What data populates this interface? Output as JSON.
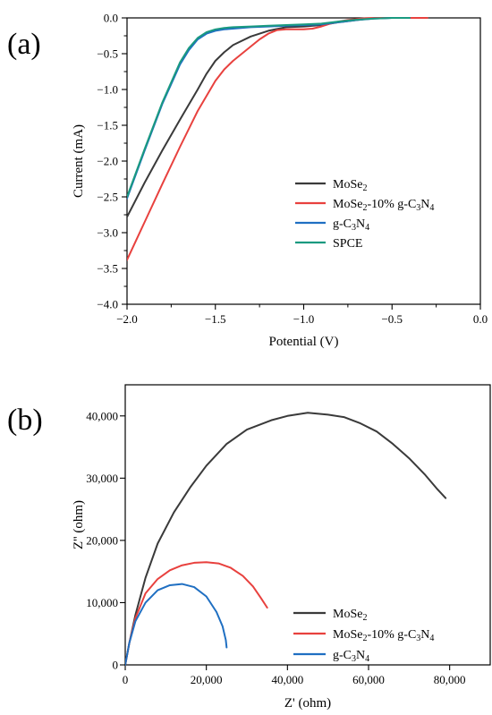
{
  "chart_data": [
    {
      "type": "line",
      "panel_label": "(a)",
      "xlabel": "Potential (V)",
      "ylabel": "Current (mA)",
      "xlim": [
        -2.0,
        0.0
      ],
      "ylim": [
        -4.0,
        0.0
      ],
      "x_ticks": [
        -2.0,
        -1.5,
        -1.0,
        -0.5,
        0.0
      ],
      "x_tick_labels": [
        "−2.0",
        "−1.5",
        "−1.0",
        "−0.5",
        "0.0"
      ],
      "y_ticks": [
        0.0,
        -0.5,
        -1.0,
        -1.5,
        -2.0,
        -2.5,
        -3.0,
        -3.5,
        -4.0
      ],
      "y_tick_labels": [
        "0.0",
        "−0.5",
        "−1.0",
        "−1.5",
        "−2.0",
        "−2.5",
        "−3.0",
        "−3.5",
        "−4.0"
      ],
      "grid": false,
      "legend_position": "bottom-right",
      "series": [
        {
          "name": "MoSe2",
          "color": "#3a3a3a",
          "x": [
            -2.0,
            -1.9,
            -1.8,
            -1.7,
            -1.6,
            -1.55,
            -1.5,
            -1.45,
            -1.4,
            -1.3,
            -1.2,
            -1.1,
            -1.0,
            -0.9,
            -0.8,
            -0.7,
            -0.65,
            -0.6,
            -0.5,
            -0.4,
            -0.3
          ],
          "y": [
            -2.78,
            -2.3,
            -1.85,
            -1.42,
            -1.0,
            -0.78,
            -0.6,
            -0.48,
            -0.38,
            -0.26,
            -0.18,
            -0.13,
            -0.12,
            -0.1,
            -0.06,
            -0.03,
            -0.015,
            -0.005,
            0.0,
            0.0,
            0.0
          ]
        },
        {
          "name": "MoSe2-10% g-C3N4",
          "color": "#e8413e",
          "x": [
            -2.0,
            -1.9,
            -1.8,
            -1.7,
            -1.6,
            -1.5,
            -1.45,
            -1.4,
            -1.35,
            -1.3,
            -1.25,
            -1.2,
            -1.15,
            -1.1,
            -1.05,
            -1.0,
            -0.95,
            -0.9,
            -0.85,
            -0.8,
            -0.75,
            -0.7,
            -0.65,
            -0.6,
            -0.5,
            -0.4,
            -0.3
          ],
          "y": [
            -3.38,
            -2.85,
            -2.32,
            -1.8,
            -1.3,
            -0.88,
            -0.72,
            -0.6,
            -0.5,
            -0.4,
            -0.3,
            -0.22,
            -0.17,
            -0.16,
            -0.16,
            -0.16,
            -0.15,
            -0.12,
            -0.08,
            -0.05,
            -0.03,
            -0.015,
            -0.005,
            0.0,
            0.0,
            0.0,
            0.0
          ]
        },
        {
          "name": "g-C3N4",
          "color": "#1f6fc2",
          "x": [
            -2.0,
            -1.9,
            -1.8,
            -1.7,
            -1.65,
            -1.6,
            -1.55,
            -1.5,
            -1.45,
            -1.4,
            -1.3,
            -1.2,
            -1.1,
            -1.0,
            -0.9,
            -0.8,
            -0.7,
            -0.6,
            -0.5,
            -0.4
          ],
          "y": [
            -2.52,
            -1.85,
            -1.2,
            -0.65,
            -0.45,
            -0.3,
            -0.22,
            -0.18,
            -0.16,
            -0.15,
            -0.13,
            -0.12,
            -0.11,
            -0.1,
            -0.09,
            -0.06,
            -0.03,
            -0.01,
            0.0,
            0.0
          ]
        },
        {
          "name": "SPCE",
          "color": "#1a9a80",
          "x": [
            -2.0,
            -1.9,
            -1.8,
            -1.7,
            -1.65,
            -1.6,
            -1.55,
            -1.5,
            -1.45,
            -1.4,
            -1.3,
            -1.2,
            -1.1,
            -1.0,
            -0.9,
            -0.8,
            -0.7,
            -0.6,
            -0.5,
            -0.4
          ],
          "y": [
            -2.5,
            -1.83,
            -1.18,
            -0.62,
            -0.42,
            -0.28,
            -0.2,
            -0.16,
            -0.14,
            -0.13,
            -0.12,
            -0.11,
            -0.1,
            -0.09,
            -0.08,
            -0.05,
            -0.025,
            -0.01,
            0.0,
            0.0
          ]
        }
      ],
      "legend": [
        {
          "parts": [
            [
              "MoSe",
              ""
            ],
            [
              "2",
              "sub"
            ]
          ]
        },
        {
          "parts": [
            [
              "MoSe",
              ""
            ],
            [
              "2",
              "sub"
            ],
            [
              "-10% g-C",
              ""
            ],
            [
              "3",
              "sub"
            ],
            [
              "N",
              ""
            ],
            [
              "4",
              "sub"
            ]
          ]
        },
        {
          "parts": [
            [
              "g-C",
              ""
            ],
            [
              "3",
              "sub"
            ],
            [
              "N",
              ""
            ],
            [
              "4",
              "sub"
            ]
          ]
        },
        {
          "parts": [
            [
              "SPCE",
              ""
            ]
          ]
        }
      ]
    },
    {
      "type": "line",
      "panel_label": "(b)",
      "xlabel": "Z' (ohm)",
      "ylabel": "Z'' (ohm)",
      "xlim": [
        0,
        90000
      ],
      "ylim": [
        0,
        45000
      ],
      "x_ticks": [
        0,
        20000,
        40000,
        60000,
        80000
      ],
      "x_tick_labels": [
        "0",
        "20,000",
        "40,000",
        "60,000",
        "80,000"
      ],
      "y_ticks": [
        0,
        10000,
        20000,
        30000,
        40000
      ],
      "y_tick_labels": [
        "0",
        "10,000",
        "20,000",
        "30,000",
        "40,000"
      ],
      "grid": false,
      "legend_position": "bottom-right",
      "series": [
        {
          "name": "MoSe2",
          "color": "#3a3a3a",
          "x": [
            0,
            1000,
            2500,
            5000,
            8000,
            12000,
            16000,
            20000,
            25000,
            30000,
            36000,
            40000,
            45000,
            50000,
            54000,
            58000,
            62000,
            66000,
            70000,
            74000,
            77000,
            79000
          ],
          "y": [
            0,
            3500,
            8000,
            14000,
            19500,
            24500,
            28500,
            32000,
            35500,
            37800,
            39300,
            40000,
            40500,
            40200,
            39800,
            38800,
            37500,
            35500,
            33200,
            30500,
            28200,
            26800
          ]
        },
        {
          "name": "MoSe2-10% g-C3N4",
          "color": "#e8413e",
          "x": [
            0,
            1000,
            2500,
            5000,
            8000,
            11000,
            14000,
            17000,
            20000,
            23000,
            26000,
            29000,
            31500,
            33500,
            35000
          ],
          "y": [
            0,
            3500,
            7500,
            11500,
            13800,
            15200,
            16000,
            16400,
            16500,
            16300,
            15600,
            14300,
            12600,
            10700,
            9200
          ]
        },
        {
          "name": "g-C3N4",
          "color": "#1f6fc2",
          "x": [
            0,
            1000,
            2500,
            5000,
            8000,
            11000,
            14000,
            17000,
            20000,
            22500,
            24000,
            24800,
            25000
          ],
          "y": [
            0,
            3500,
            7000,
            10000,
            12000,
            12800,
            13000,
            12500,
            11000,
            8500,
            6200,
            4000,
            2800
          ]
        }
      ],
      "legend": [
        {
          "parts": [
            [
              "MoSe",
              ""
            ],
            [
              "2",
              "sub"
            ]
          ]
        },
        {
          "parts": [
            [
              "MoSe",
              ""
            ],
            [
              "2",
              "sub"
            ],
            [
              "-10% g-C",
              ""
            ],
            [
              "3",
              "sub"
            ],
            [
              "N",
              ""
            ],
            [
              "4",
              "sub"
            ]
          ]
        },
        {
          "parts": [
            [
              "g-C",
              ""
            ],
            [
              "3",
              "sub"
            ],
            [
              "N",
              ""
            ],
            [
              "4",
              "sub"
            ]
          ]
        }
      ]
    }
  ]
}
